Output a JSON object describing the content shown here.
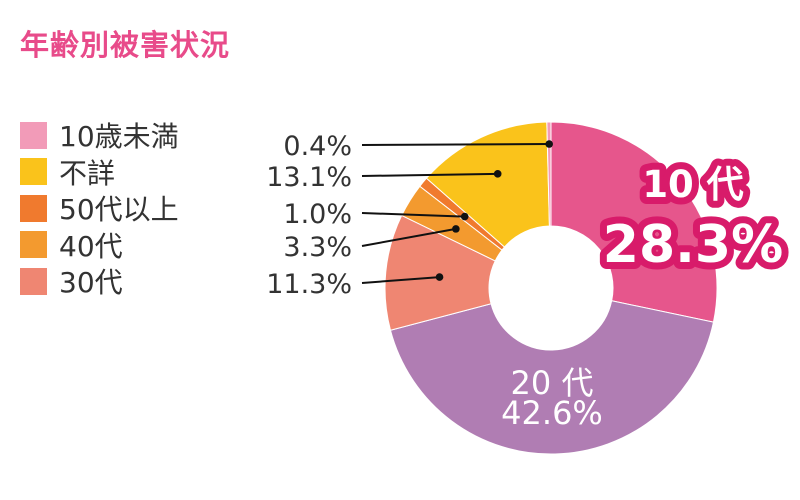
{
  "title": "年齢別被害状況",
  "legend": [
    {
      "label": "10歳未満",
      "color": "#f29bb8"
    },
    {
      "label": "不詳",
      "color": "#fac31b"
    },
    {
      "label": "50代以上",
      "color": "#f07a2e"
    },
    {
      "label": "40代",
      "color": "#f39a2f"
    },
    {
      "label": "30代",
      "color": "#ef8672"
    }
  ],
  "chart_data": {
    "type": "pie",
    "subtype": "donut",
    "title": "年齢別被害状況",
    "slices": [
      {
        "label": "10代",
        "value": 28.3,
        "value_label": "28.3%",
        "color": "#e6568c"
      },
      {
        "label": "20代",
        "value": 42.6,
        "value_label": "42.6%",
        "color": "#b07db3"
      },
      {
        "label": "30代",
        "value": 11.3,
        "value_label": "11.3%",
        "color": "#ef8672"
      },
      {
        "label": "40代",
        "value": 3.3,
        "value_label": "3.3%",
        "color": "#f39a2f"
      },
      {
        "label": "50代以上",
        "value": 1.0,
        "value_label": "1.0%",
        "color": "#f07a2e"
      },
      {
        "label": "不詳",
        "value": 13.1,
        "value_label": "13.1%",
        "color": "#fac31b"
      },
      {
        "label": "10歳未満",
        "value": 0.4,
        "value_label": "0.4%",
        "color": "#f29bb8"
      }
    ],
    "inside_labels": [
      {
        "slice": "10代",
        "category": "10 代",
        "value": "28.3%"
      },
      {
        "slice": "20代",
        "category": "20 代",
        "value": "42.6%"
      }
    ],
    "callouts": [
      {
        "slice": "10歳未満",
        "value": "0.4%"
      },
      {
        "slice": "不詳",
        "value": "13.1%"
      },
      {
        "slice": "50代以上",
        "value": "1.0%"
      },
      {
        "slice": "40代",
        "value": "3.3%"
      },
      {
        "slice": "30代",
        "value": "11.3%"
      }
    ],
    "legend_position": "left"
  }
}
